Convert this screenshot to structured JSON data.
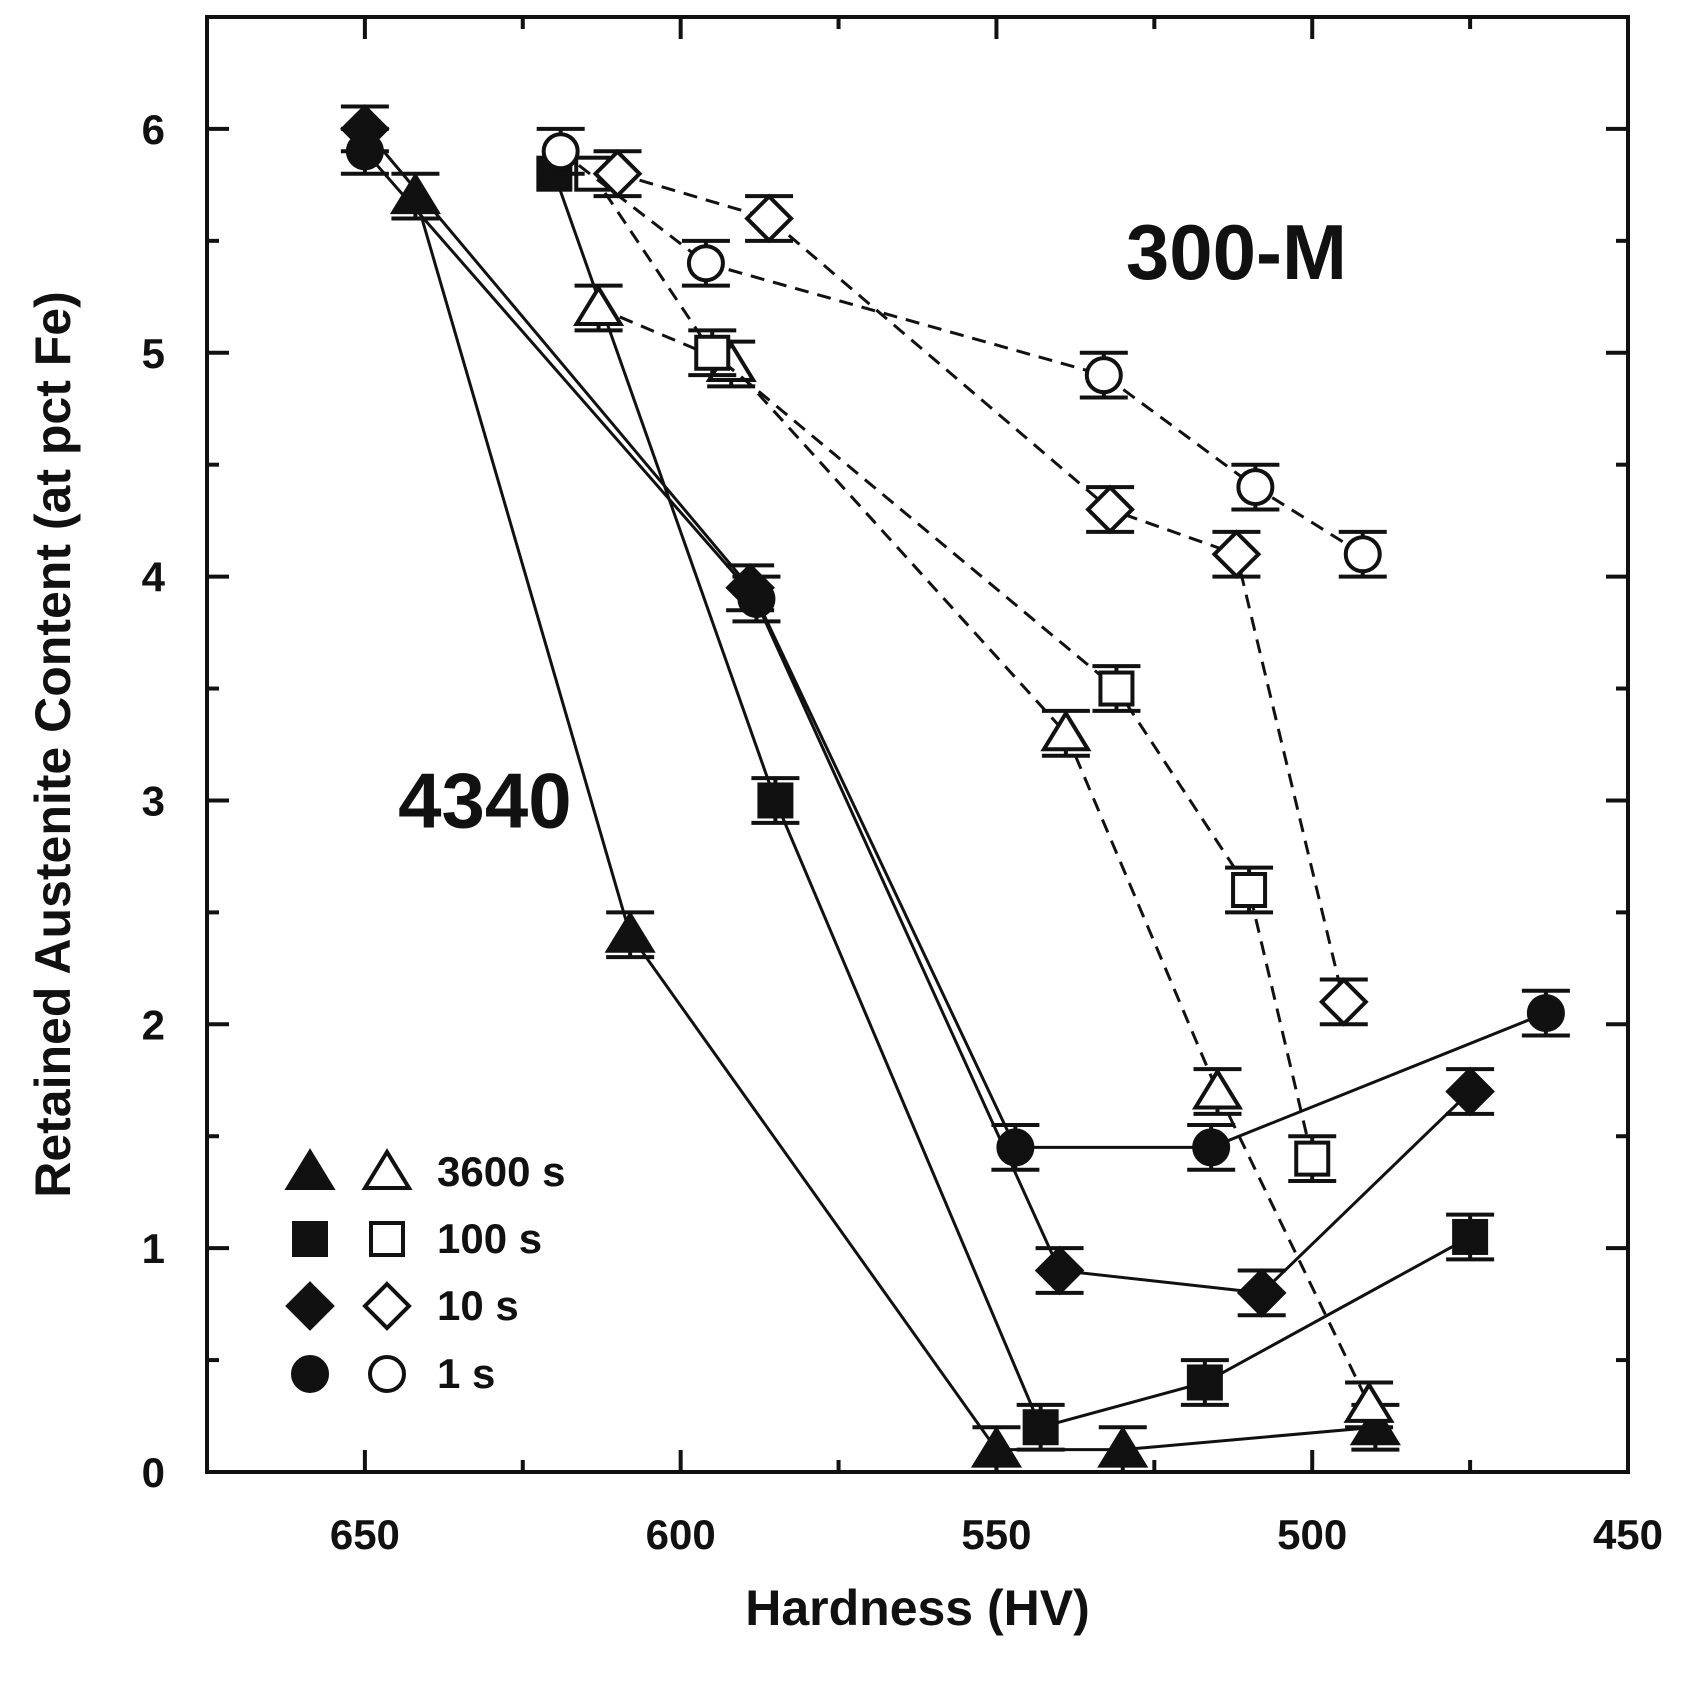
{
  "chart_data": {
    "type": "scatter",
    "title": "",
    "xlabel": "Hardness (HV)",
    "ylabel": "Retained Austenite Content (at pct Fe)",
    "xlim": [
      675,
      450
    ],
    "ylim": [
      0,
      6.5
    ],
    "x_reversed": true,
    "xticks": [
      650,
      600,
      550,
      500,
      450
    ],
    "yticks": [
      0,
      1,
      2,
      3,
      4,
      5,
      6
    ],
    "grid": false,
    "legend_position": "bottom-left",
    "annotations": [
      {
        "text": "300-M",
        "x": 512,
        "y": 5.45
      },
      {
        "text": "4340",
        "x": 631,
        "y": 3.0
      }
    ],
    "legend": [
      {
        "label": "3600 s",
        "marker": "triangle"
      },
      {
        "label": "100 s",
        "marker": "square"
      },
      {
        "label": "10 s",
        "marker": "diamond"
      },
      {
        "label": "1 s",
        "marker": "circle"
      }
    ],
    "series": [
      {
        "name": "4340 3600 s",
        "alloy": "4340",
        "time": "3600 s",
        "marker": "triangle",
        "filled": true,
        "dashed": false,
        "x": [
          642,
          608,
          550,
          530,
          490
        ],
        "y": [
          5.7,
          2.4,
          0.1,
          0.1,
          0.2
        ],
        "err": [
          0.1,
          0.1,
          0.1,
          0.1,
          0.1
        ]
      },
      {
        "name": "4340 100 s",
        "alloy": "4340",
        "time": "100 s",
        "marker": "square",
        "filled": true,
        "dashed": false,
        "x": [
          620,
          585,
          543,
          517,
          475
        ],
        "y": [
          5.8,
          3.0,
          0.2,
          0.4,
          1.05
        ],
        "err": [
          0,
          0.1,
          0.1,
          0.1,
          0.1
        ]
      },
      {
        "name": "4340 10 s",
        "alloy": "4340",
        "time": "10 s",
        "marker": "diamond",
        "filled": true,
        "dashed": false,
        "x": [
          650,
          589,
          540,
          508,
          475
        ],
        "y": [
          6.0,
          3.95,
          0.9,
          0.8,
          1.7
        ],
        "err": [
          0.1,
          0.1,
          0.1,
          0.1,
          0.1
        ]
      },
      {
        "name": "4340 1 s",
        "alloy": "4340",
        "time": "1 s",
        "marker": "circle",
        "filled": true,
        "dashed": false,
        "x": [
          650,
          588,
          547,
          516,
          463
        ],
        "y": [
          5.9,
          3.9,
          1.45,
          1.45,
          2.05
        ],
        "err": [
          0.1,
          0.1,
          0.1,
          0.1,
          0.1
        ]
      },
      {
        "name": "300-M 3600 s",
        "alloy": "300-M",
        "time": "3600 s",
        "marker": "triangle",
        "filled": false,
        "dashed": true,
        "x": [
          613,
          592,
          539,
          515,
          491
        ],
        "y": [
          5.2,
          4.95,
          3.3,
          1.7,
          0.3
        ],
        "err": [
          0.1,
          0.1,
          0.1,
          0.1,
          0.1
        ]
      },
      {
        "name": "300-M 100 s",
        "alloy": "300-M",
        "time": "100 s",
        "marker": "square",
        "filled": false,
        "dashed": true,
        "x": [
          614,
          595,
          531,
          510,
          500
        ],
        "y": [
          5.8,
          5.0,
          3.5,
          2.6,
          1.4
        ],
        "err": [
          0,
          0.1,
          0.1,
          0.1,
          0.1
        ]
      },
      {
        "name": "300-M 10 s",
        "alloy": "300-M",
        "time": "10 s",
        "marker": "diamond",
        "filled": false,
        "dashed": true,
        "x": [
          610,
          586,
          532,
          512,
          495
        ],
        "y": [
          5.8,
          5.6,
          4.3,
          4.1,
          2.1
        ],
        "err": [
          0.1,
          0.1,
          0.1,
          0.1,
          0.1
        ]
      },
      {
        "name": "300-M 1 s",
        "alloy": "300-M",
        "time": "1 s",
        "marker": "circle",
        "filled": false,
        "dashed": true,
        "x": [
          619,
          596,
          533,
          509,
          492
        ],
        "y": [
          5.9,
          5.4,
          4.9,
          4.4,
          4.1
        ],
        "err": [
          0.1,
          0.1,
          0.1,
          0.1,
          0.1
        ]
      }
    ]
  }
}
